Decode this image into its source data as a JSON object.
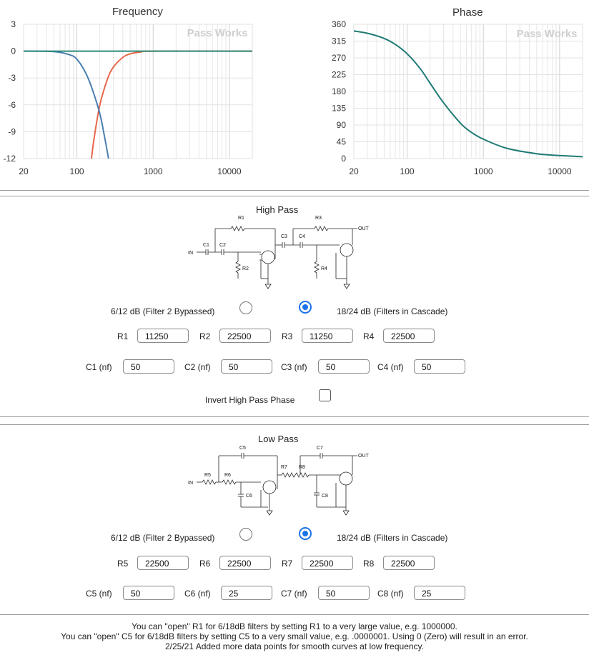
{
  "frequency_chart": {
    "chart_data": {
      "type": "line",
      "title": "Frequency",
      "watermark": "Pass Works",
      "xscale": "log",
      "xlim": [
        20,
        20000
      ],
      "ylim": [
        -12,
        3
      ],
      "x_ticks": [
        "20",
        "100",
        "1000",
        "10000"
      ],
      "y_ticks": [
        "3",
        "0",
        "-3",
        "-6",
        "-9",
        "-12"
      ],
      "series": [
        {
          "color": "#e8664a",
          "x": [
            155,
            170,
            200,
            250,
            300,
            400,
            500,
            700,
            1000,
            20000
          ],
          "y": [
            -12,
            -9.5,
            -6,
            -3.2,
            -1.8,
            -0.7,
            -0.3,
            -0.08,
            0,
            0
          ]
        },
        {
          "color": "#4a7fb0",
          "x": [
            20,
            50,
            80,
            100,
            130,
            160,
            200,
            230,
            260
          ],
          "y": [
            0,
            -0.05,
            -0.4,
            -0.9,
            -2.4,
            -4.3,
            -7,
            -9.5,
            -12
          ]
        },
        {
          "color": "#2e8b7a",
          "x": [
            20,
            20000
          ],
          "y": [
            0,
            0
          ]
        }
      ]
    }
  },
  "phase_chart": {
    "chart_data": {
      "type": "line",
      "title": "Phase",
      "watermark": "Pass Works",
      "xscale": "log",
      "xlim": [
        20,
        20000
      ],
      "ylim": [
        0,
        360
      ],
      "x_ticks": [
        "20",
        "100",
        "1000",
        "10000"
      ],
      "y_ticks": [
        "360",
        "315",
        "270",
        "225",
        "180",
        "135",
        "90",
        "45",
        "0"
      ],
      "series": [
        {
          "color": "#1f7a75",
          "x": [
            20,
            30,
            50,
            70,
            100,
            150,
            200,
            300,
            500,
            700,
            1000,
            2000,
            5000,
            10000,
            20000
          ],
          "y": [
            342,
            336,
            322,
            306,
            281,
            240,
            202,
            150,
            95,
            70,
            52,
            28,
            13,
            8,
            5
          ]
        }
      ]
    }
  },
  "high_pass": {
    "title": "High Pass",
    "schematic_labels": {
      "r1": "R1",
      "r2": "R2",
      "r3": "R3",
      "r4": "R4",
      "c1": "C1",
      "c2": "C2",
      "c3": "C3",
      "c4": "C4",
      "in": "IN",
      "out": "OUT"
    },
    "option_bypass": "6/12 dB (Filter 2 Bypassed)",
    "option_cascade": "18/24 dB (Filters in Cascade)",
    "selected": "cascade",
    "resistors": [
      {
        "label": "R1",
        "value": "11250"
      },
      {
        "label": "R2",
        "value": "22500"
      },
      {
        "label": "R3",
        "value": "11250"
      },
      {
        "label": "R4",
        "value": "22500"
      }
    ],
    "capacitors": [
      {
        "label": "C1 (nf)",
        "value": "50"
      },
      {
        "label": "C2 (nf)",
        "value": "50"
      },
      {
        "label": "C3 (nf)",
        "value": "50"
      },
      {
        "label": "C4 (nf)",
        "value": "50"
      }
    ],
    "invert_label": "Invert High Pass Phase",
    "invert_checked": false
  },
  "low_pass": {
    "title": "Low Pass",
    "schematic_labels": {
      "r5": "R5",
      "r6": "R6",
      "r7": "R7",
      "r8": "R8",
      "c5": "C5",
      "c6": "C6",
      "c7": "C7",
      "c8": "C8",
      "in": "IN",
      "out": "OUT"
    },
    "option_bypass": "6/12 dB (Filter 2 Bypassed)",
    "option_cascade": "18/24 dB (Filters in Cascade)",
    "selected": "cascade",
    "resistors": [
      {
        "label": "R5",
        "value": "22500"
      },
      {
        "label": "R6",
        "value": "22500"
      },
      {
        "label": "R7",
        "value": "22500"
      },
      {
        "label": "R8",
        "value": "22500"
      }
    ],
    "capacitors": [
      {
        "label": "C5 (nf)",
        "value": "50"
      },
      {
        "label": "C6 (nf)",
        "value": "25"
      },
      {
        "label": "C7 (nf)",
        "value": "50"
      },
      {
        "label": "C8 (nf)",
        "value": "25"
      }
    ]
  },
  "notes": [
    "You can \"open\" R1 for 6/18dB filters by setting R1 to a very large value, e.g. 1000000.",
    "You can \"open\" C5 for 6/18dB filters by setting C5 to a very small value, e.g. .0000001. Using 0 (Zero) will result in an error.",
    "2/25/21 Added more data points for smooth curves at low frequency."
  ],
  "colors": {
    "accent": "#1a73e8",
    "grid": "#e3e3e3"
  }
}
